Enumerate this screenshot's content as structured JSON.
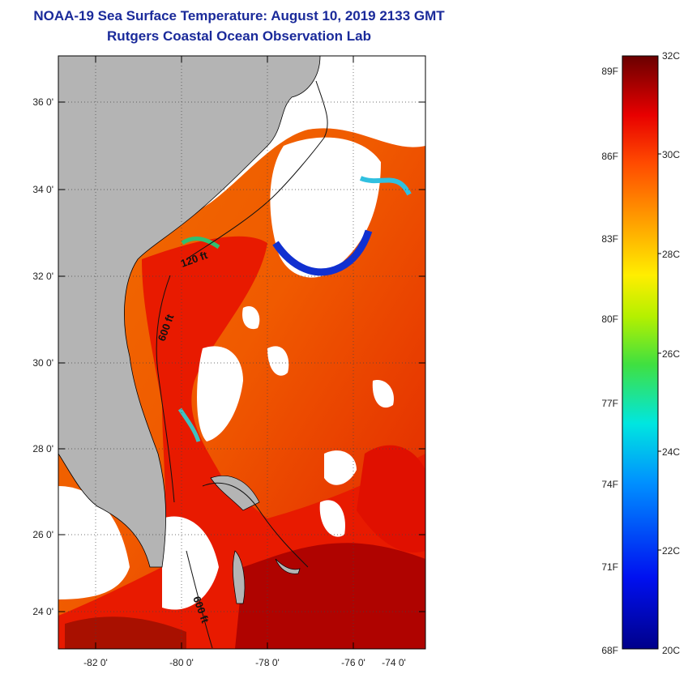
{
  "title": "NOAA-19 Sea Surface Temperature:  August 10, 2019 2133 GMT",
  "subtitle": "Rutgers Coastal Ocean Observation Lab",
  "map": {
    "lat_ticks": [
      "36 0'",
      "34 0'",
      "32 0'",
      "30 0'",
      "28 0'",
      "26 0'",
      "24 0'"
    ],
    "lon_ticks": [
      "-82 0'",
      "-80 0'",
      "-78 0'",
      "-76 0'",
      "-74 0'"
    ],
    "contour_labels": [
      "120 ft",
      "600 ft",
      "600 ft"
    ],
    "colors": {
      "land": "#b4b4b4",
      "cloud": "#ffffff",
      "warm": "#e81a00",
      "orange": "#f58a00",
      "darkred": "#8a0000"
    }
  },
  "colorbar": {
    "fahrenheit_labels": [
      "89F",
      "86F",
      "83F",
      "80F",
      "77F",
      "74F",
      "71F",
      "68F"
    ],
    "celsius_labels": [
      "32C",
      "30C",
      "28C",
      "26C",
      "24C",
      "22C",
      "20C"
    ],
    "range_c": [
      20,
      32
    ]
  }
}
